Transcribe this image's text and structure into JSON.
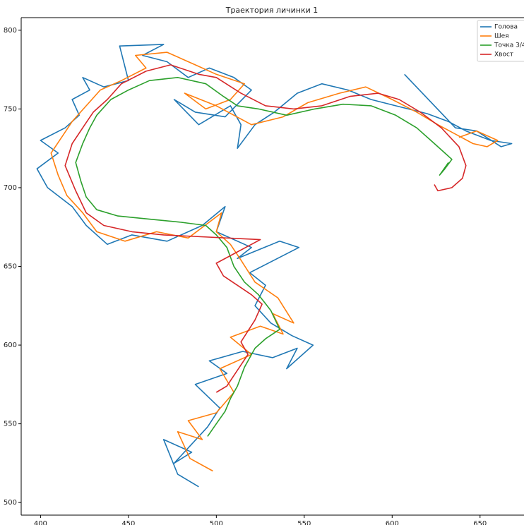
{
  "chart_data": {
    "type": "line",
    "title": "Траектория личинки 1",
    "xlim": [
      389,
      675
    ],
    "ylim": [
      492,
      808
    ],
    "xticks": [
      400,
      450,
      500,
      550,
      600,
      650
    ],
    "yticks": [
      500,
      550,
      600,
      650,
      700,
      750,
      800
    ],
    "legend": "upper right",
    "series": [
      {
        "name": "Голова",
        "color": "#1f77b4",
        "x": [
          490,
          478,
          470,
          486,
          476,
          495,
          502,
          488,
          506,
          496,
          515,
          532,
          546,
          540,
          555,
          543,
          531,
          522,
          528,
          519,
          547,
          536,
          512,
          520,
          500,
          505,
          492,
          472,
          452,
          438,
          426,
          418,
          404,
          398,
          410,
          400,
          414,
          422,
          418,
          428,
          424,
          436,
          450,
          445,
          470,
          458,
          472,
          484,
          496,
          510,
          520,
          505,
          488,
          476,
          490,
          508,
          514,
          512,
          522,
          533,
          546,
          560,
          575,
          588,
          602,
          620,
          632,
          642,
          656,
          668,
          662,
          648,
          636,
          607
        ],
        "values": [
          510,
          518,
          540,
          532,
          525,
          548,
          560,
          575,
          582,
          590,
          596,
          592,
          598,
          585,
          600,
          606,
          614,
          625,
          638,
          646,
          662,
          666,
          655,
          662,
          672,
          688,
          676,
          666,
          670,
          664,
          676,
          688,
          700,
          712,
          722,
          730,
          738,
          746,
          756,
          762,
          770,
          764,
          768,
          790,
          791,
          784,
          780,
          770,
          776,
          770,
          762,
          745,
          748,
          756,
          740,
          752,
          740,
          725,
          740,
          748,
          760,
          766,
          762,
          756,
          752,
          747,
          742,
          736,
          730,
          728,
          726,
          736,
          738,
          772
        ]
      },
      {
        "name": "Шея",
        "color": "#ff7f0e",
        "x": [
          498,
          485,
          478,
          492,
          484,
          500,
          510,
          502,
          520,
          508,
          525,
          538,
          532,
          544,
          535,
          522,
          514,
          508,
          500,
          503,
          484,
          466,
          448,
          432,
          424,
          415,
          410,
          406,
          412,
          418,
          426,
          434,
          446,
          460,
          454,
          472,
          488,
          500,
          516,
          508,
          494,
          482,
          500,
          520,
          538,
          552,
          570,
          585,
          600,
          614,
          626,
          636,
          646,
          654,
          660,
          648,
          638
        ],
        "values": [
          520,
          528,
          545,
          540,
          552,
          557,
          570,
          585,
          594,
          605,
          612,
          607,
          620,
          614,
          630,
          640,
          654,
          664,
          672,
          684,
          668,
          672,
          666,
          672,
          684,
          695,
          708,
          722,
          732,
          742,
          752,
          762,
          768,
          776,
          784,
          786,
          778,
          772,
          766,
          756,
          750,
          760,
          752,
          740,
          745,
          754,
          760,
          764,
          756,
          748,
          740,
          734,
          728,
          726,
          730,
          736,
          732
        ]
      },
      {
        "name": "Точка 3/4",
        "color": "#2ca02c",
        "x": [
          495,
          500,
          505,
          508,
          512,
          516,
          522,
          528,
          536,
          531,
          524,
          516,
          510,
          506,
          500,
          494,
          480,
          462,
          444,
          432,
          426,
          423,
          420,
          424,
          428,
          432,
          440,
          450,
          462,
          478,
          494,
          504,
          512,
          524,
          540,
          556,
          572,
          588,
          602,
          614,
          622,
          630,
          634,
          630,
          627,
          632
        ],
        "values": [
          542,
          550,
          558,
          566,
          574,
          586,
          598,
          604,
          610,
          622,
          632,
          640,
          650,
          662,
          670,
          676,
          678,
          680,
          682,
          686,
          694,
          704,
          716,
          728,
          738,
          746,
          756,
          762,
          768,
          770,
          766,
          758,
          752,
          750,
          746,
          750,
          753,
          752,
          746,
          738,
          730,
          722,
          718,
          712,
          708,
          716
        ]
      },
      {
        "name": "Хвост",
        "color": "#d62728",
        "x": [
          500,
          506,
          512,
          518,
          514,
          522,
          526,
          520,
          512,
          504,
          500,
          525,
          470,
          452,
          436,
          426,
          420,
          414,
          418,
          424,
          430,
          438,
          446,
          460,
          474,
          490,
          500,
          514,
          528,
          544,
          560,
          576,
          592,
          604,
          616,
          628,
          638,
          642,
          640,
          634,
          626,
          624
        ],
        "values": [
          570,
          574,
          584,
          594,
          602,
          616,
          626,
          632,
          638,
          644,
          652,
          667,
          670,
          672,
          676,
          684,
          698,
          714,
          728,
          738,
          748,
          756,
          766,
          774,
          778,
          772,
          770,
          760,
          752,
          750,
          752,
          758,
          760,
          756,
          748,
          738,
          726,
          714,
          706,
          700,
          698,
          702
        ]
      }
    ]
  }
}
